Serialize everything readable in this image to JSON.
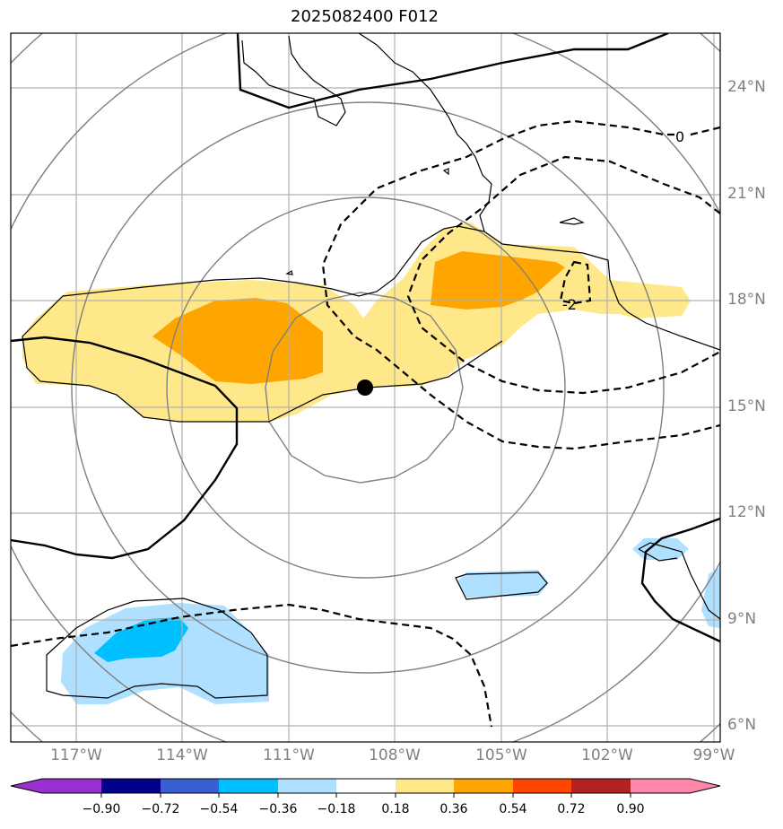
{
  "title": "2025082400 F012",
  "lon_labels": [
    "117°W",
    "114°W",
    "111°W",
    "108°W",
    "105°W",
    "102°W",
    "99°W"
  ],
  "lat_labels": [
    "24°N",
    "21°N",
    "18°N",
    "15°N",
    "12°N",
    "9°N",
    "6°N"
  ],
  "contour_labels": [
    "0",
    "-2"
  ],
  "colorbar": {
    "ticks": [
      "−0.90",
      "−0.72",
      "−0.54",
      "−0.36",
      "−0.18",
      "0.18",
      "0.36",
      "0.54",
      "0.72",
      "0.90"
    ],
    "colors": [
      "#9b30d0",
      "#00008b",
      "#3a5fd0",
      "#00bfff",
      "#b0e0ff",
      "#ffffff",
      "#ffe88a",
      "#ffa500",
      "#ff4500",
      "#b22222",
      "#ff88aa"
    ]
  },
  "shading_colors": {
    "light_yellow": "#ffe88a",
    "orange": "#ffa500",
    "light_blue": "#b0e0ff",
    "blue": "#00bfff"
  },
  "center_marker": {
    "lon": -108.9,
    "lat": 15.5
  }
}
